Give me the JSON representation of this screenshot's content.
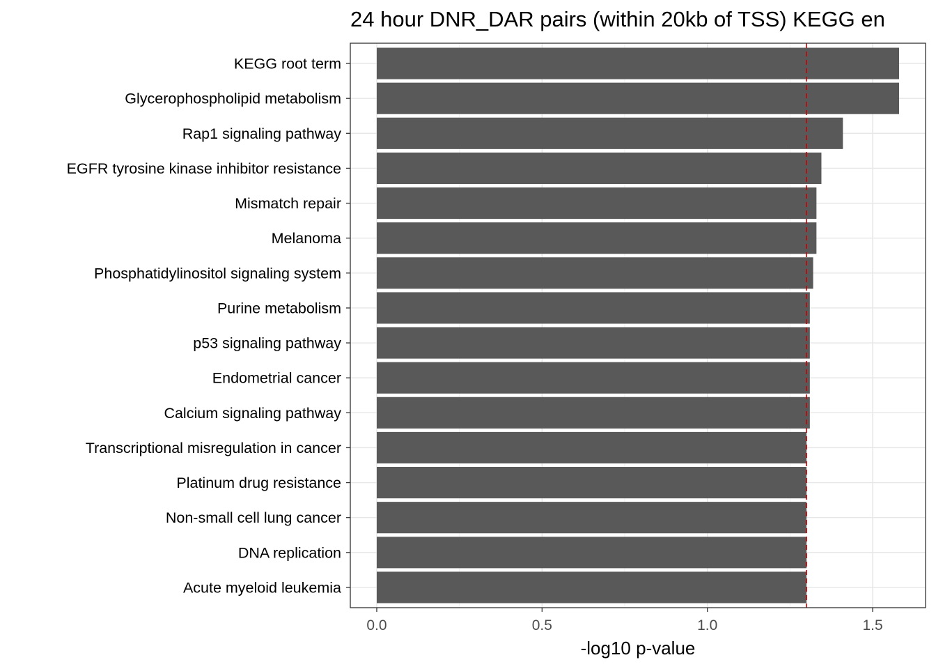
{
  "chart_data": {
    "type": "bar",
    "orientation": "horizontal",
    "title": "24 hour DNR_DAR pairs (within 20kb of TSS) KEGG en",
    "xlabel": "-log10 p-value",
    "ylabel": "",
    "xlim": [
      -0.08,
      1.66
    ],
    "xticks": [
      0.0,
      0.5,
      1.0,
      1.5
    ],
    "xtick_labels": [
      "0.0",
      "0.5",
      "1.0",
      "1.5"
    ],
    "grid": true,
    "threshold_line": {
      "value": 1.3,
      "color": "#cc0000",
      "style": "dashed"
    },
    "bar_color": "#595959",
    "categories": [
      "KEGG root term",
      "Glycerophospholipid metabolism",
      "Rap1 signaling pathway",
      "EGFR tyrosine kinase inhibitor resistance",
      "Mismatch repair",
      "Melanoma",
      "Phosphatidylinositol signaling system",
      "Purine metabolism",
      "p53 signaling pathway",
      "Endometrial cancer",
      "Calcium signaling pathway",
      "Transcriptional misregulation in cancer",
      "Platinum drug resistance",
      "Non-small cell lung cancer",
      "DNA replication",
      "Acute myeloid leukemia"
    ],
    "values": [
      1.58,
      1.58,
      1.41,
      1.345,
      1.33,
      1.33,
      1.32,
      1.31,
      1.31,
      1.31,
      1.31,
      1.3,
      1.3,
      1.3,
      1.3,
      1.3
    ]
  }
}
